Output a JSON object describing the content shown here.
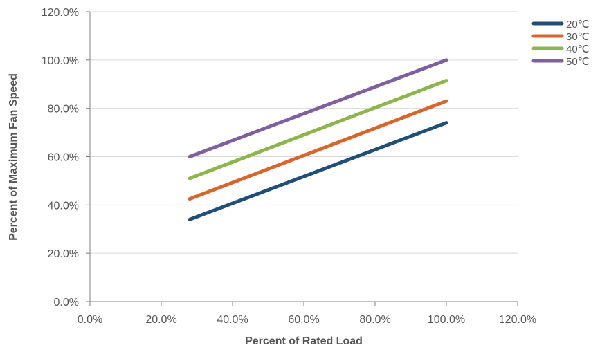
{
  "chart_data": {
    "type": "line",
    "title": "",
    "xlabel": "Percent of Rated Load",
    "ylabel": "Percent of Maximum Fan Speed",
    "xlim": [
      0,
      120
    ],
    "ylim": [
      0,
      120
    ],
    "xticks": [
      "0.0%",
      "20.0%",
      "40.0%",
      "60.0%",
      "80.0%",
      "100.0%",
      "120.0%"
    ],
    "yticks": [
      "0.0%",
      "20.0%",
      "40.0%",
      "60.0%",
      "80.0%",
      "100.0%",
      "120.0%"
    ],
    "grid": "horizontal",
    "legend_position": "top-right",
    "series": [
      {
        "name": "20℃",
        "color": "#1f4e79",
        "points": [
          [
            28,
            34
          ],
          [
            100,
            74
          ]
        ]
      },
      {
        "name": "30℃",
        "color": "#d9652b",
        "points": [
          [
            28,
            42.5
          ],
          [
            100,
            83
          ]
        ]
      },
      {
        "name": "40℃",
        "color": "#8cb54b",
        "points": [
          [
            28,
            51
          ],
          [
            100,
            91.5
          ]
        ]
      },
      {
        "name": "50℃",
        "color": "#7e5fa0",
        "points": [
          [
            28,
            60
          ],
          [
            100,
            100
          ]
        ]
      }
    ]
  }
}
